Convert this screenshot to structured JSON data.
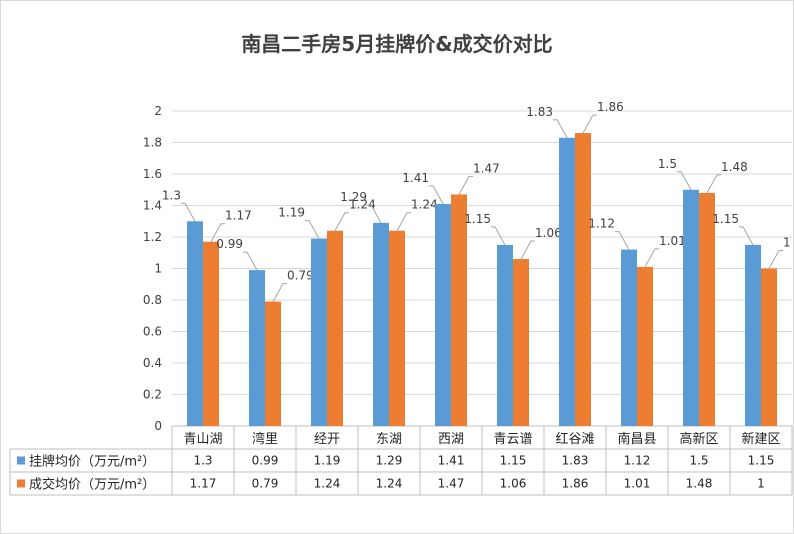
{
  "chart_data": {
    "type": "bar",
    "title": "南昌二手房5月挂牌价&成交价对比",
    "categories": [
      "青山湖",
      "湾里",
      "经开",
      "东湖",
      "西湖",
      "青云谱",
      "红谷滩",
      "南昌县",
      "高新区",
      "新建区"
    ],
    "series": [
      {
        "name": "挂牌均价（万元/m²）",
        "color": "#5b9bd5",
        "values": [
          1.3,
          0.99,
          1.19,
          1.29,
          1.41,
          1.15,
          1.83,
          1.12,
          1.5,
          1.15
        ]
      },
      {
        "name": "成交均价（万元/m²）",
        "color": "#ed7d31",
        "values": [
          1.17,
          0.79,
          1.24,
          1.24,
          1.47,
          1.06,
          1.86,
          1.01,
          1.48,
          1
        ]
      }
    ],
    "ylim": [
      0,
      2
    ],
    "yticks": [
      "0",
      "0.2",
      "0.4",
      "0.6",
      "0.8",
      "1",
      "1.2",
      "1.4",
      "1.6",
      "1.8",
      "2"
    ],
    "grid": true,
    "data_table": true,
    "data_labels": true
  }
}
